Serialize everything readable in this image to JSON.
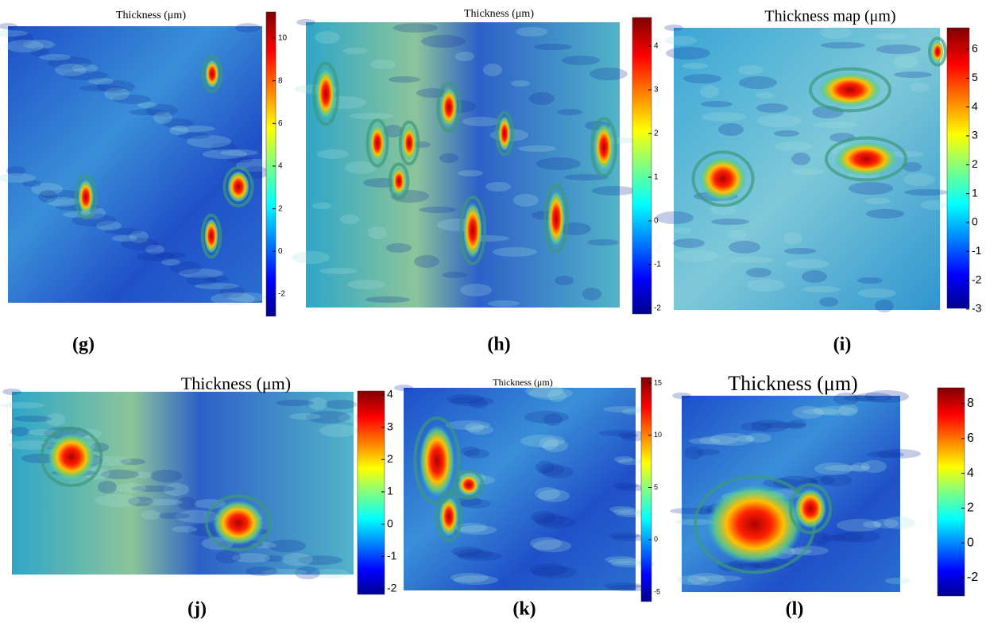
{
  "panels": [
    {
      "title": "Thickness (μm)",
      "label": "(g)",
      "colorbar_ticks": [
        10,
        8,
        6,
        4,
        2,
        0,
        -2
      ]
    },
    {
      "title": "Thickness (μm)",
      "label": "(h)",
      "colorbar_ticks": [
        4,
        3,
        2,
        1,
        0,
        -1,
        -2
      ]
    },
    {
      "title": "Thickness map (μm)",
      "label": "(i)",
      "colorbar_ticks": [
        6,
        5,
        4,
        3,
        2,
        1,
        0,
        -1,
        -2,
        -3
      ]
    },
    {
      "title": "Thickness (μm)",
      "label": "(j)",
      "colorbar_ticks": [
        4,
        3,
        2,
        1,
        0,
        -1,
        -2
      ]
    },
    {
      "title": "Thickness (μm)",
      "label": "(k)",
      "colorbar_ticks": [
        15,
        10,
        5,
        0,
        -5
      ]
    },
    {
      "title": "Thickness (μm)",
      "label": "(l)",
      "colorbar_ticks": [
        8,
        6,
        4,
        2,
        0,
        -2
      ]
    }
  ]
}
